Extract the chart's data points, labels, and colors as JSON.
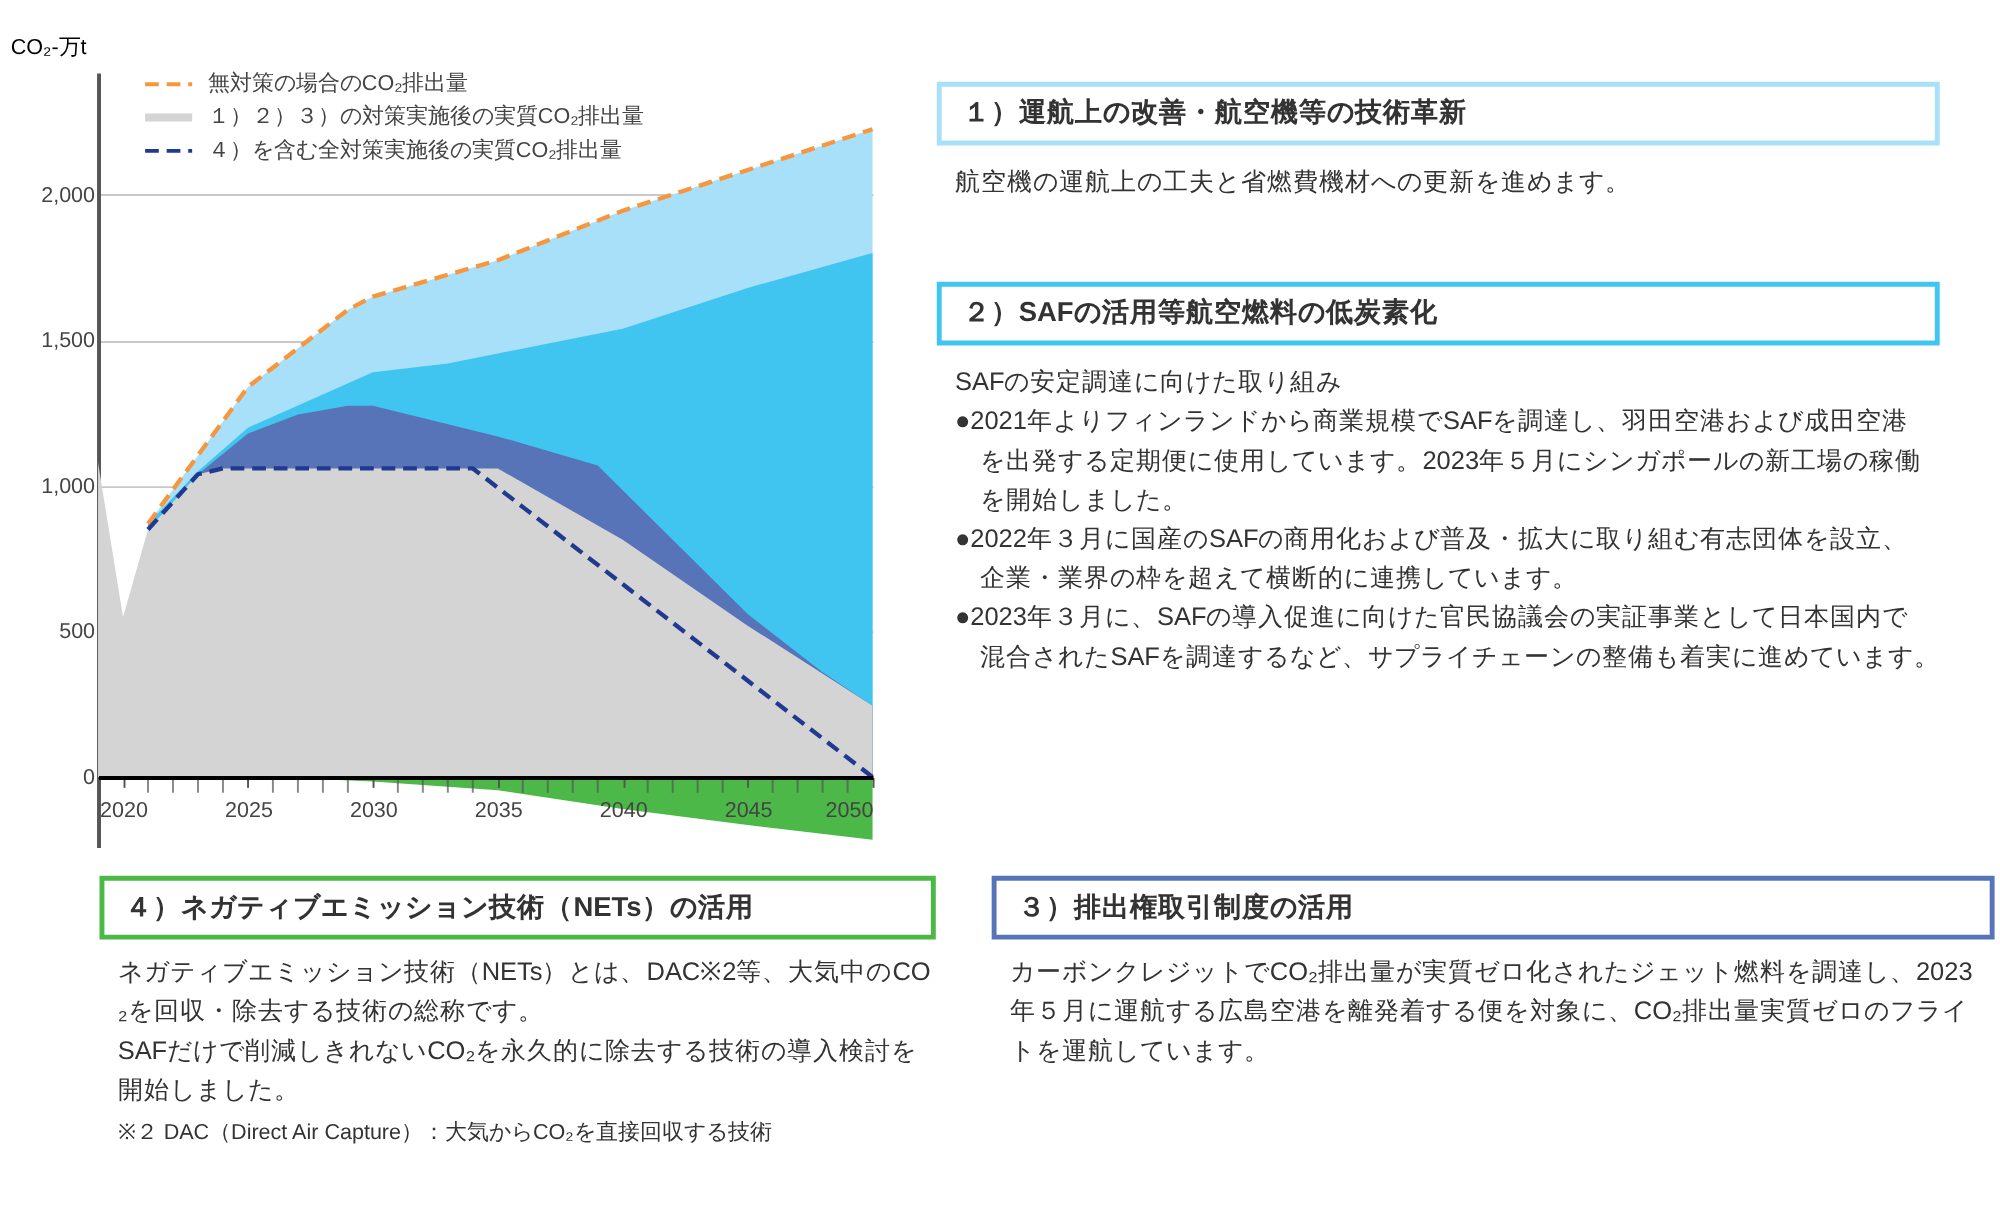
{
  "chart_data": {
    "type": "area",
    "ylabel": "CO₂-万t",
    "xlim": [
      2019,
      2050
    ],
    "xticks": [
      2020,
      {
        "value": 2021,
        "label": null
      },
      {
        "value": 2022,
        "label": null
      },
      {
        "value": 2023,
        "label": null
      },
      {
        "value": 2024,
        "label": null
      },
      2025,
      {
        "value": 2026,
        "label": null
      },
      {
        "value": 2027,
        "label": null
      },
      {
        "value": 2028,
        "label": null
      },
      {
        "value": 2029,
        "label": null
      },
      2030,
      {
        "value": 2031,
        "label": null
      },
      {
        "value": 2032,
        "label": null
      },
      {
        "value": 2033,
        "label": null
      },
      {
        "value": 2034,
        "label": null
      },
      2035,
      {
        "value": 2036,
        "label": null
      },
      {
        "value": 2037,
        "label": null
      },
      {
        "value": 2038,
        "label": null
      },
      {
        "value": 2039,
        "label": null
      },
      2040,
      {
        "value": 2041,
        "label": null
      },
      {
        "value": 2042,
        "label": null
      },
      {
        "value": 2043,
        "label": null
      },
      {
        "value": 2044,
        "label": null
      },
      2045,
      {
        "value": 2046,
        "label": null
      },
      {
        "value": 2047,
        "label": null
      },
      {
        "value": 2048,
        "label": null
      },
      {
        "value": 2049,
        "label": null
      },
      2050
    ],
    "ylim": [
      -240,
      2420
    ],
    "yticks": [
      0,
      500,
      {
        "value": 1000,
        "label": "1,000"
      },
      {
        "value": 1500,
        "label": "1,500"
      },
      {
        "value": 2000,
        "label": "2,000"
      }
    ],
    "grid": "y",
    "legend": "top left",
    "series": [
      {
        "type": "line",
        "name": "無対策の場合のCO₂排出量",
        "color": "#f7963c",
        "line_style": "dashed",
        "x": [
          2021,
          2025,
          2029,
          2030,
          2035,
          2040,
          2045,
          2050
        ],
        "values": [
          870,
          1340,
          1605,
          1650,
          1775,
          1945,
          2085,
          2225
        ]
      },
      {
        "type": "area",
        "color": "#a8e0fa",
        "x": [
          2021,
          2025,
          2029,
          2030,
          2035,
          2040,
          2045,
          2050
        ],
        "values": [
          870,
          1340,
          1605,
          1650,
          1775,
          1945,
          2085,
          2225
        ]
      },
      {
        "type": "area",
        "color": "#40c4f0",
        "x": [
          2021,
          2023,
          2025,
          2030,
          2033,
          2035,
          2040,
          2045,
          2050
        ],
        "values": [
          870,
          1050,
          1200,
          1390,
          1420,
          1455,
          1540,
          1680,
          1800
        ]
      },
      {
        "type": "area",
        "color": "#5874b8",
        "x": [
          2021,
          2023,
          2025,
          2027,
          2029,
          2030,
          2035,
          2039,
          2042,
          2045,
          2048,
          2050
        ],
        "values": [
          850,
          1040,
          1180,
          1245,
          1275,
          1275,
          1170,
          1070,
          815,
          560,
          360,
          245
        ]
      },
      {
        "type": "area",
        "name": "１）２）３）の対策実施後の実質CO₂排出量",
        "color": "#d4d4d4",
        "x": [
          2019,
          2020,
          2021,
          2023,
          2024,
          2035,
          2040,
          2045,
          2050
        ],
        "values": [
          1080,
          550,
          850,
          1040,
          1060,
          1060,
          815,
          520,
          245
        ]
      },
      {
        "type": "area",
        "color": "#4cb847",
        "x": [
          2026,
          2030,
          2035,
          2040,
          2045,
          2050
        ],
        "values": [
          0,
          -15,
          -45,
          -110,
          -165,
          -215
        ]
      },
      {
        "type": "line",
        "name": "４）を含む全対策実施後の実質CO₂排出量",
        "color": "#1f3a8f",
        "line_style": "dashed",
        "x": [
          2021,
          2023,
          2024,
          2034,
          2050
        ],
        "values": [
          850,
          1040,
          1060,
          1060,
          0
        ]
      }
    ],
    "annotations": [
      "１）運航上の改善・航空機等の技術革新",
      "航空機の運航上の工夫と省燃費機材への更新を進めます。",
      "２）SAFの活用等航空燃料の低炭素化",
      "SAFの安定調達に向けた取り組み",
      "●2021年よりフィンランドから商業規模でSAFを調達し、羽田空港および成田空港を出発する定期便に使用しています。2023年５月にシンガポールの新工場の稼働を開始しました。",
      "●2022年３月に国産のSAFの商用化および普及・拡大に取り組む有志団体を設立、企業・業界の枠を超えて横断的に連携しています。",
      "●2023年３月に、SAFの導入促進に向けた官民協議会の実証事業として日本国内で混合されたSAFを調達するなど、サプライチェーンの整備も着実に進めています。",
      "４）ネガティブエミッション技術（NETs）の活用",
      "ネガティブエミッション技術（NETs）とは、DAC※2等、大気中のCO₂を回収・除去する技術の総称です。",
      "SAFだけで削減しきれないCO₂を永久的に除去する技術の導入検討を開始しました。",
      "※２ DAC（Direct Air Capture）：大気からCO₂を直接回収する技術",
      "３）排出権取引制度の活用",
      "カーボンクレジットでCO₂排出量が実質ゼロ化されたジェット燃料を調達し、2023年５月に運航する広島空港を離発着する便を対象に、CO₂排出量実質ゼロのフライトを運航しています。"
    ]
  }
}
